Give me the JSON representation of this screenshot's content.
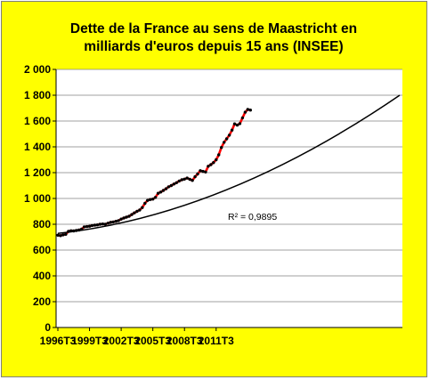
{
  "colors": {
    "background": "#ffff00",
    "plot_area": "#ffffff",
    "series_line": "#ff0000",
    "series_markers": "#000000",
    "trendline": "#000000",
    "gridlines": "#808080"
  },
  "chart_data": {
    "type": "line",
    "title": [
      "Dette de la France au sens de Maastricht en",
      "milliards d'euros depuis 15 ans (INSEE)"
    ],
    "xlabel": "",
    "ylabel": "",
    "x_tick_labels": [
      "1996T3",
      "1999T3",
      "2002T3",
      "2005T3",
      "2008T3",
      "2011T3"
    ],
    "y_tick_labels": [
      "0",
      "200",
      "400",
      "600",
      "800",
      "1 000",
      "1 200",
      "1 400",
      "1 600",
      "1 800",
      "2 000"
    ],
    "ylim": [
      0,
      2000
    ],
    "grid": "horizontal",
    "legend": "none",
    "quarters_between_x_ticks": 12,
    "series": [
      {
        "style": "red line with black markers",
        "values": [
          715,
          712,
          718,
          722,
          745,
          750,
          748,
          752,
          755,
          762,
          780,
          782,
          785,
          790,
          793,
          795,
          800,
          802,
          800,
          808,
          815,
          818,
          823,
          828,
          840,
          848,
          855,
          862,
          875,
          888,
          900,
          910,
          930,
          962,
          985,
          992,
          995,
          1008,
          1040,
          1050,
          1062,
          1075,
          1090,
          1100,
          1112,
          1122,
          1135,
          1145,
          1150,
          1158,
          1148,
          1140,
          1168,
          1190,
          1215,
          1210,
          1205,
          1250,
          1262,
          1278,
          1300,
          1338,
          1395,
          1435,
          1462,
          1490,
          1530,
          1578,
          1568,
          1580,
          1625,
          1668,
          1690,
          1685
        ]
      },
      {
        "style": "black trendline",
        "trend": "polynomial",
        "r_squared_label": "R² = 0,9895",
        "values": [
          729,
          1800
        ]
      }
    ]
  }
}
